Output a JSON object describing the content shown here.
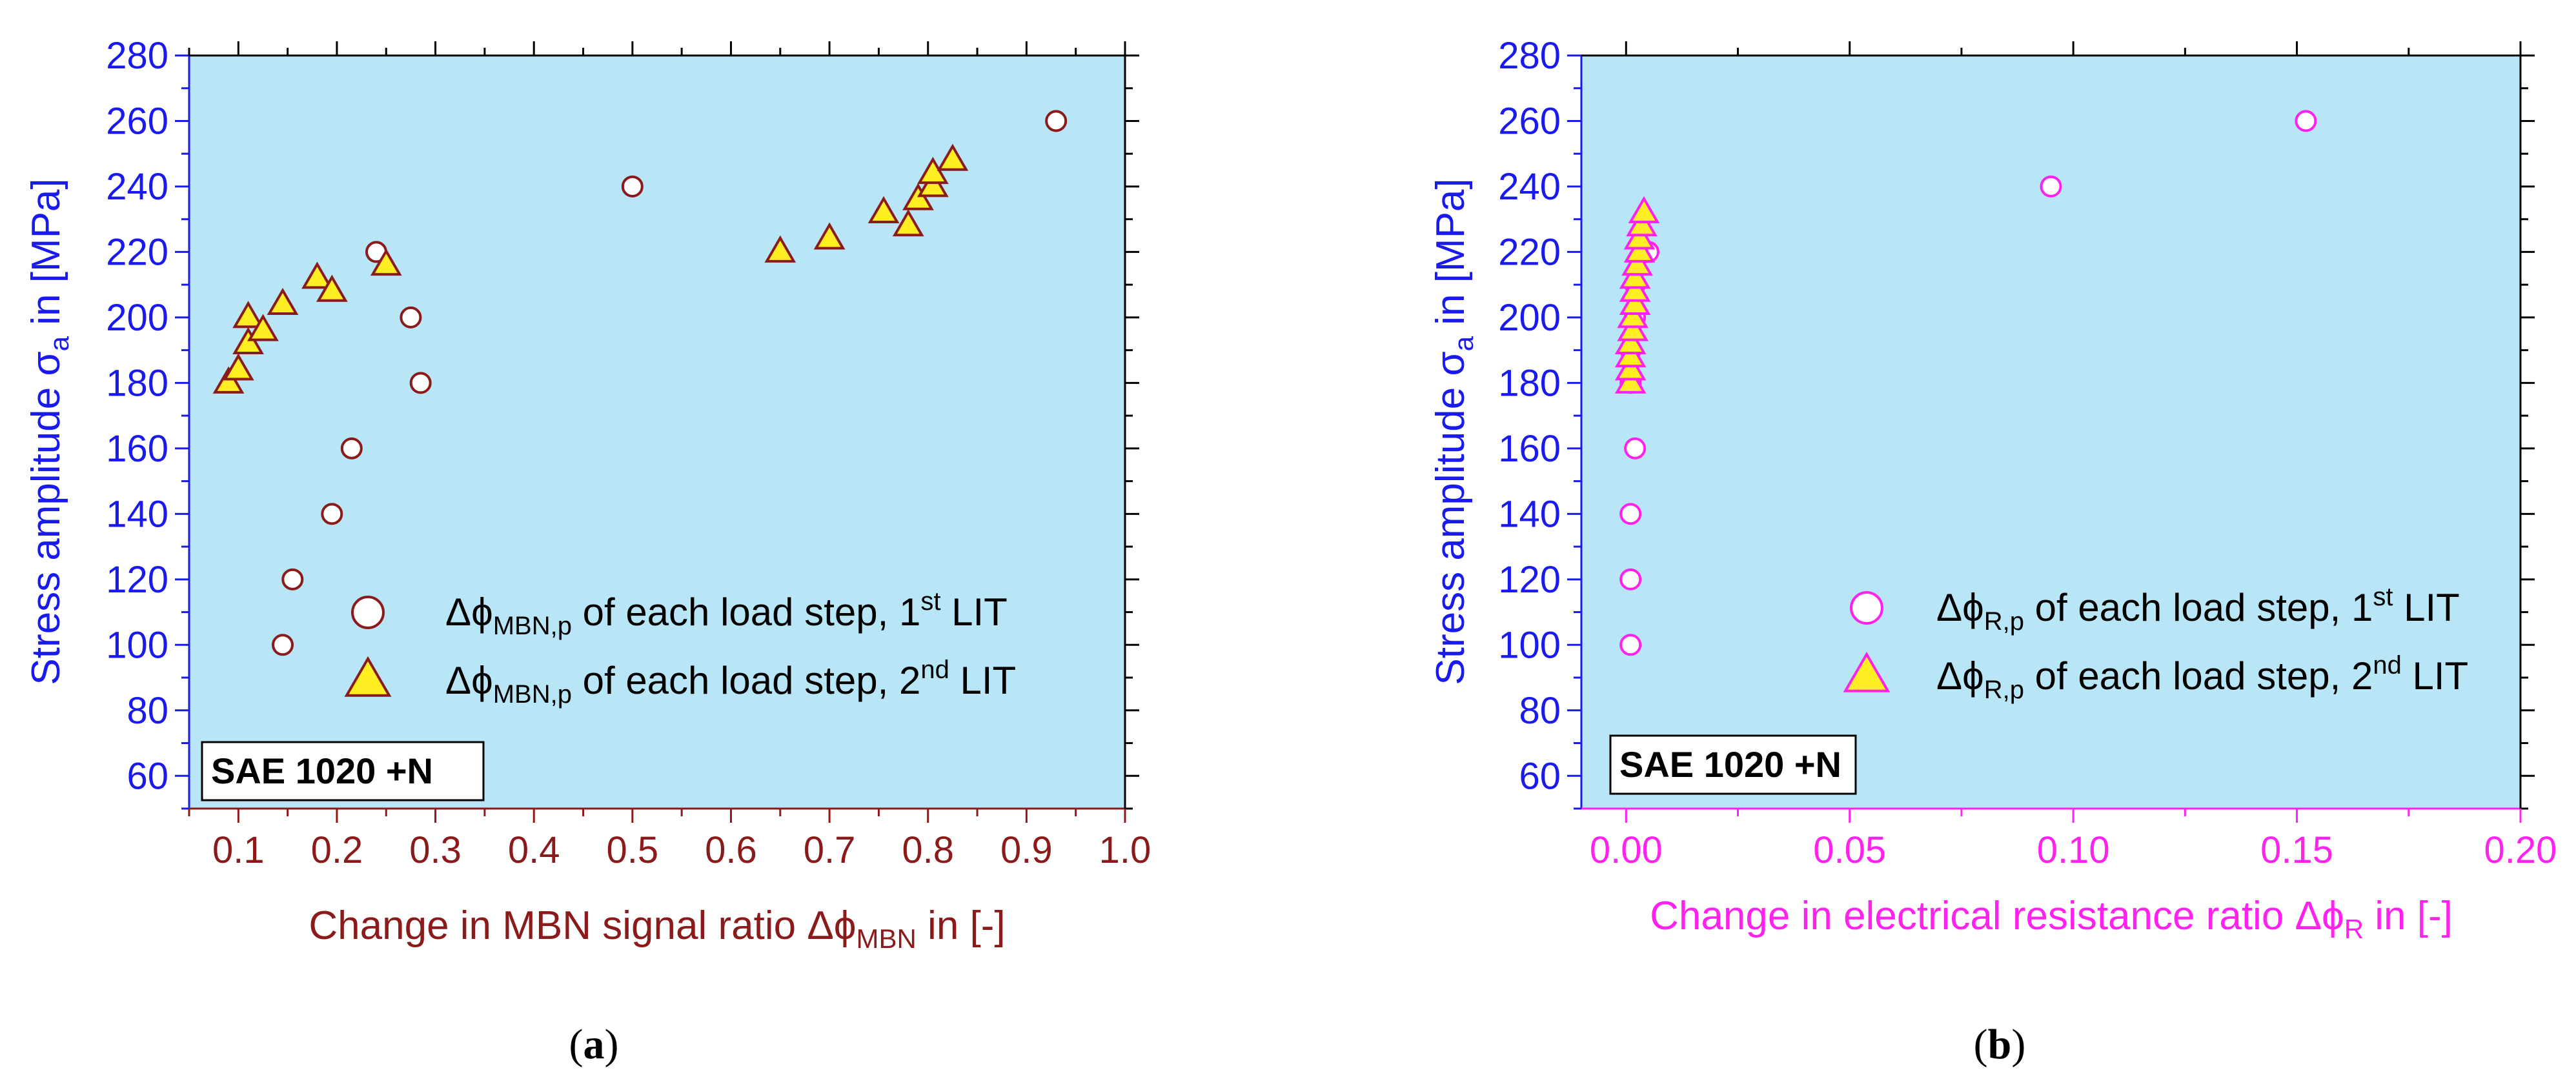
{
  "chart_data": [
    {
      "type": "scatter",
      "panel_label": "(a)",
      "xlabel": "Change in MBN signal ratio Δϕ",
      "xlabel_sub": "MBN",
      "xlabel_suffix": " in [-]",
      "ylabel": "Stress amplitude σ",
      "ylabel_sub": "a",
      "ylabel_suffix": " in [MPa]",
      "xlim": [
        0.05,
        1.0
      ],
      "ylim": [
        50,
        280
      ],
      "x_ticks": [
        "0.1",
        "0.2",
        "0.3",
        "0.4",
        "0.5",
        "0.6",
        "0.7",
        "0.8",
        "0.9",
        "1.0"
      ],
      "y_ticks": [
        "60",
        "80",
        "100",
        "120",
        "140",
        "160",
        "180",
        "200",
        "220",
        "240",
        "260",
        "280"
      ],
      "material_label": "SAE 1020 +N",
      "colors": {
        "background": "#b8e6f7",
        "x_axis": "#8b1a1a",
        "y_axis": "#1a1aee"
      },
      "series": [
        {
          "marker": "circle",
          "color": "#8b1a1a",
          "fill": "#ffffff",
          "legend_main": "Δϕ",
          "legend_sub": "MBN,p",
          "legend_mid": " of each load step, 1",
          "legend_sup": "st",
          "legend_end": " LIT",
          "x": [
            0.145,
            0.155,
            0.195,
            0.215,
            0.24,
            0.285,
            0.275,
            0.5,
            0.93
          ],
          "y": [
            100,
            120,
            140,
            160,
            220,
            180,
            200,
            240,
            260
          ]
        },
        {
          "marker": "triangle",
          "color": "#8b1a1a",
          "fill": "#ffee22",
          "legend_main": "Δϕ",
          "legend_sub": "MBN,p",
          "legend_mid": " of each load step, 2",
          "legend_sup": "nd",
          "legend_end": " LIT",
          "x": [
            0.09,
            0.1,
            0.11,
            0.11,
            0.125,
            0.145,
            0.18,
            0.195,
            0.25,
            0.65,
            0.7,
            0.755,
            0.78,
            0.79,
            0.805,
            0.805,
            0.825
          ],
          "y": [
            180,
            184,
            192,
            200,
            196,
            204,
            212,
            208,
            216,
            220,
            224,
            232,
            228,
            236,
            240,
            244,
            248
          ]
        }
      ]
    },
    {
      "type": "scatter",
      "panel_label": "(b)",
      "xlabel": "Change in electrical resistance ratio Δϕ",
      "xlabel_sub": "R",
      "xlabel_suffix": " in [-]",
      "ylabel": "Stress amplitude σ",
      "ylabel_sub": "a",
      "ylabel_suffix": " in [MPa]",
      "xlim": [
        -0.01,
        0.2
      ],
      "ylim": [
        50,
        280
      ],
      "x_ticks": [
        "0.00",
        "0.05",
        "0.10",
        "0.15",
        "0.20"
      ],
      "y_ticks": [
        "60",
        "80",
        "100",
        "120",
        "140",
        "160",
        "180",
        "200",
        "220",
        "240",
        "260",
        "280"
      ],
      "material_label": "SAE 1020 +N",
      "colors": {
        "background": "#b8e6f7",
        "x_axis": "#ff22ee",
        "y_axis": "#1a1aee"
      },
      "series": [
        {
          "marker": "circle",
          "color": "#ff22ee",
          "fill": "#ffffff",
          "legend_main": "Δϕ",
          "legend_sub": "R,p",
          "legend_mid": " of each load step, 1",
          "legend_sup": "st",
          "legend_end": " LIT",
          "x": [
            0.001,
            0.001,
            0.001,
            0.002,
            0.001,
            0.001,
            0.002,
            0.002,
            0.005,
            0.095,
            0.152
          ],
          "y": [
            100,
            120,
            140,
            160,
            180,
            190,
            200,
            210,
            220,
            240,
            260
          ]
        },
        {
          "marker": "triangle",
          "color": "#ff22ee",
          "fill": "#ffee22",
          "legend_main": "Δϕ",
          "legend_sub": "R,p",
          "legend_mid": " of each load step, 2",
          "legend_sup": "nd",
          "legend_end": " LIT",
          "x": [
            0.001,
            0.001,
            0.001,
            0.001,
            0.0015,
            0.0015,
            0.002,
            0.002,
            0.002,
            0.0025,
            0.003,
            0.003,
            0.0035,
            0.004
          ],
          "y": [
            180,
            184,
            188,
            192,
            196,
            200,
            204,
            208,
            212,
            216,
            220,
            224,
            228,
            232
          ]
        }
      ]
    }
  ]
}
